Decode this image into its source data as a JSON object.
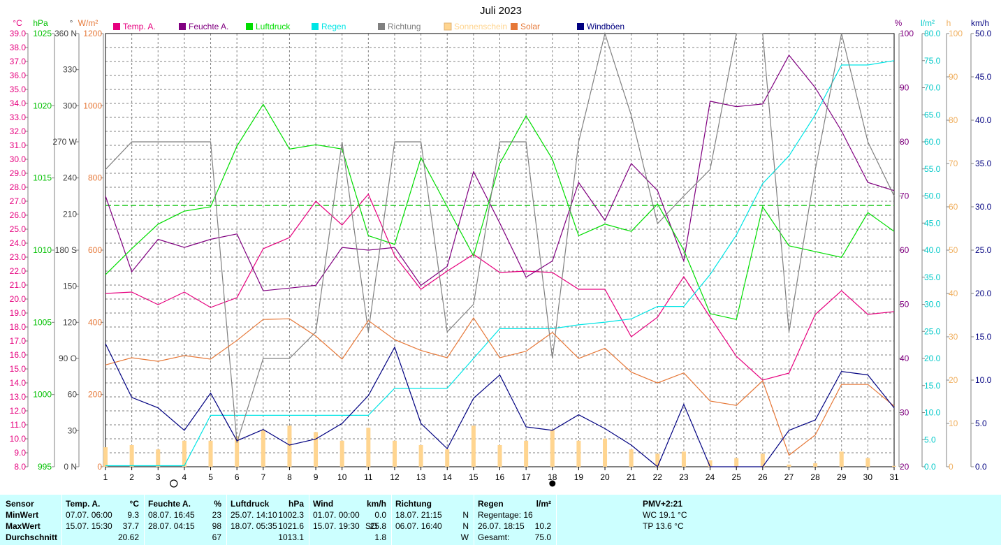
{
  "chart_data": {
    "type": "line",
    "title": "Juli 2023",
    "x": [
      1,
      2,
      3,
      4,
      5,
      6,
      7,
      8,
      9,
      10,
      11,
      12,
      13,
      14,
      15,
      16,
      17,
      18,
      19,
      20,
      21,
      22,
      23,
      24,
      25,
      26,
      27,
      28,
      29,
      30,
      31
    ],
    "x_tick_labels": [
      "1",
      "2",
      "3",
      "4",
      "5",
      "6",
      "7",
      "8",
      "9",
      "10",
      "11",
      "12",
      "13",
      "14",
      "15",
      "16",
      "17",
      "18",
      "19",
      "20",
      "21",
      "22",
      "23",
      "24",
      "25",
      "26",
      "27",
      "28",
      "29",
      "30",
      "31"
    ],
    "legend": [
      {
        "name": "Temp. A.",
        "color": "#e6007e"
      },
      {
        "name": "Feuchte A.",
        "color": "#800080"
      },
      {
        "name": "Luftdruck",
        "color": "#00dd00"
      },
      {
        "name": "Regen",
        "color": "#00e5e5"
      },
      {
        "name": "Richtung",
        "color": "#808080"
      },
      {
        "name": "Sonnenschein",
        "color": "#ffd590"
      },
      {
        "name": "Solar",
        "color": "#e67838"
      },
      {
        "name": "Windböen",
        "color": "#000080"
      }
    ],
    "axes": {
      "temp": {
        "unit": "°C",
        "range": [
          8,
          39
        ],
        "ticks": [
          "8.0",
          "9.0",
          "10.0",
          "11.0",
          "12.0",
          "13.0",
          "14.0",
          "15.0",
          "16.0",
          "17.0",
          "18.0",
          "19.0",
          "20.0",
          "21.0",
          "22.0",
          "23.0",
          "24.0",
          "25.0",
          "26.0",
          "27.0",
          "28.0",
          "29.0",
          "30.0",
          "31.0",
          "32.0",
          "33.0",
          "34.0",
          "35.0",
          "36.0",
          "37.0",
          "38.0",
          "39.0"
        ],
        "color": "#e6007e"
      },
      "pressure": {
        "unit": "hPa",
        "range": [
          995,
          1025
        ],
        "ticks": [
          "995",
          "1000",
          "1005",
          "1010",
          "1015",
          "1020",
          "1025"
        ],
        "color": "#00c000"
      },
      "direction": {
        "unit": "°",
        "range": [
          0,
          360
        ],
        "ticks": [
          "0 N",
          "30",
          "60",
          "90 O",
          "120",
          "150",
          "180 S",
          "210",
          "240",
          "270 W",
          "300",
          "330",
          "360 N"
        ],
        "color": "#404040"
      },
      "solar": {
        "unit": "W/m²",
        "range": [
          0,
          1200
        ],
        "ticks": [
          "0",
          "200",
          "400",
          "600",
          "800",
          "1000",
          "1200"
        ],
        "color": "#e67838"
      },
      "humidity": {
        "unit": "%",
        "range": [
          20,
          100
        ],
        "ticks": [
          "20",
          "30",
          "40",
          "50",
          "60",
          "70",
          "80",
          "90",
          "100"
        ],
        "color": "#800080"
      },
      "rain": {
        "unit": "l/m²",
        "range": [
          0,
          80
        ],
        "ticks": [
          "0.0",
          "5.0",
          "10.0",
          "15.0",
          "20.0",
          "25.0",
          "30.0",
          "35.0",
          "40.0",
          "45.0",
          "50.0",
          "55.0",
          "60.0",
          "65.0",
          "70.0",
          "75.0",
          "80.0"
        ],
        "color": "#00c8c8"
      },
      "sunshine": {
        "unit": "h",
        "range": [
          0,
          100
        ],
        "ticks": [
          "0",
          "10",
          "20",
          "30",
          "40",
          "50",
          "60",
          "70",
          "80",
          "90",
          "100"
        ],
        "color": "#f0b060"
      },
      "wind": {
        "unit": "km/h",
        "range": [
          0,
          50
        ],
        "ticks": [
          "0.0",
          "5.0",
          "10.0",
          "15.0",
          "20.0",
          "25.0",
          "30.0",
          "35.0",
          "40.0",
          "45.0",
          "50.0"
        ],
        "color": "#000080"
      }
    },
    "pressure_reference": 1013.1,
    "series": [
      {
        "name": "Temp. A.",
        "axis": "temp",
        "values": [
          20.4,
          20.5,
          19.6,
          20.5,
          19.4,
          20.1,
          23.6,
          24.4,
          27.0,
          25.3,
          27.5,
          23.1,
          20.7,
          22.0,
          23.2,
          21.9,
          22.0,
          21.9,
          20.7,
          20.7,
          17.3,
          18.7,
          21.6,
          18.7,
          15.9,
          14.2,
          14.7,
          18.9,
          20.6,
          18.9,
          19.1
        ],
        "color": "#e6007e"
      },
      {
        "name": "Feuchte A.",
        "axis": "humidity",
        "values": [
          70,
          56,
          62,
          60.5,
          62,
          63,
          52.5,
          53,
          53.5,
          60.5,
          60,
          60.5,
          53.5,
          57,
          74.5,
          65,
          55,
          58,
          72.5,
          65.5,
          76,
          71,
          58,
          87.5,
          86.5,
          87,
          96,
          90,
          82,
          72.5,
          71
        ],
        "color": "#800080"
      },
      {
        "name": "Luftdruck",
        "axis": "pressure",
        "values": [
          1008.3,
          1010.1,
          1011.8,
          1012.7,
          1013.0,
          1017.2,
          1020.1,
          1017.0,
          1017.3,
          1017.0,
          1011.0,
          1010.4,
          1016.4,
          1013.0,
          1009.6,
          1016.0,
          1019.3,
          1016.3,
          1011.0,
          1011.8,
          1011.3,
          1013.2,
          1010.0,
          1005.6,
          1005.2,
          1013.0,
          1010.3,
          1009.9,
          1009.5,
          1012.6,
          1011.3
        ],
        "color": "#00dd00"
      },
      {
        "name": "Regen",
        "axis": "rain",
        "values": [
          0.2,
          0.2,
          0.2,
          0.2,
          9.5,
          9.5,
          9.5,
          9.5,
          9.5,
          9.5,
          9.5,
          14.5,
          14.5,
          14.5,
          20,
          25.5,
          25.5,
          25.5,
          26.2,
          26.7,
          27.3,
          29.6,
          29.6,
          35.5,
          42.8,
          52.3,
          57.4,
          65,
          74.2,
          74.2,
          75
        ],
        "color": "#00e5e5"
      },
      {
        "name": "Richtung",
        "axis": "direction",
        "values": [
          247,
          270,
          270,
          270,
          270,
          20,
          90,
          90,
          112,
          270,
          112,
          270,
          270,
          112,
          135,
          270,
          270,
          90,
          270,
          360,
          292,
          202,
          225,
          247,
          360,
          360,
          112,
          247,
          360,
          270,
          225
        ],
        "color": "#808080"
      },
      {
        "name": "Sonnenschein",
        "axis": "sunshine",
        "values": [
          4.5,
          5,
          4,
          6,
          6,
          7,
          8.5,
          9.5,
          8,
          6,
          9,
          6,
          5,
          4,
          9.5,
          5,
          6,
          8.5,
          6,
          6.5,
          4,
          3,
          3.5,
          1.5,
          2,
          3,
          0.5,
          0.8,
          3.5,
          2,
          0.2
        ],
        "color": "#ffd590"
      },
      {
        "name": "Solar",
        "axis": "solar",
        "values": [
          282,
          302,
          292,
          308,
          298,
          350,
          408,
          410,
          362,
          298,
          405,
          352,
          322,
          302,
          412,
          302,
          320,
          372,
          300,
          328,
          262,
          232,
          260,
          182,
          170,
          238,
          32,
          88,
          228,
          228,
          168
        ],
        "color": "#e67838"
      },
      {
        "name": "Windböen",
        "axis": "wind",
        "values": [
          14.2,
          8.0,
          6.8,
          4.2,
          8.5,
          3.0,
          4.3,
          2.5,
          3.2,
          5.0,
          8.2,
          13.8,
          5.0,
          2.1,
          7.9,
          10.6,
          4.6,
          4.2,
          6.0,
          4.4,
          2.5,
          0.0,
          7.2,
          0.0,
          0.0,
          0.0,
          4.2,
          5.4,
          11.0,
          10.6,
          6.8
        ],
        "color": "#000080"
      }
    ],
    "markers": {
      "full_moon_day": 3.6,
      "new_moon_day": 18
    },
    "grid": true
  },
  "stats": {
    "sensor": {
      "header": "Sensor",
      "rows": [
        "MinWert",
        "MaxWert",
        "Durchschnitt"
      ]
    },
    "temp": {
      "header": "Temp. A.",
      "unit": "°C",
      "min_time": "07.07.  06:00",
      "min_val": "9.3",
      "max_time": "15.07.  15:30",
      "max_val": "37.7",
      "avg": "20.62"
    },
    "humidity": {
      "header": "Feuchte A.",
      "unit": "%",
      "min_time": "08.07.  16:45",
      "min_val": "23",
      "max_time": "28.07.  04:15",
      "max_val": "98",
      "avg": "67"
    },
    "pressure": {
      "header": "Luftdruck",
      "unit": "hPa",
      "min_time": "25.07.  14:10",
      "min_val": "1002.3",
      "max_time": "18.07.  05:35",
      "max_val": "1021.6",
      "avg": "1013.1"
    },
    "wind": {
      "header": "Wind",
      "unit": "km/h",
      "min_time": "01.07.  00:00",
      "min_val": "0.0",
      "max_time": "15.07.  19:30",
      "max_dir": "SO",
      "max_val": "25.8",
      "avg": "1.8"
    },
    "direction": {
      "header": "Richtung",
      "min_time": "18.07.  21:15",
      "min_dir": "N",
      "max_time": "06.07.  16:40",
      "max_dir": "N",
      "avg_dir": "W"
    },
    "rain": {
      "header": "Regen",
      "unit": "l/m²",
      "row1": "Regentage: 16",
      "row2_time": "26.07.  18:15",
      "row2_val": "10.2",
      "row3_label": "Gesamt:",
      "row3_val": "75.0"
    },
    "pmv": {
      "header": "PMV+2:21",
      "wc": "WC 19.1 °C",
      "tp": "TP 13.6 °C"
    }
  }
}
